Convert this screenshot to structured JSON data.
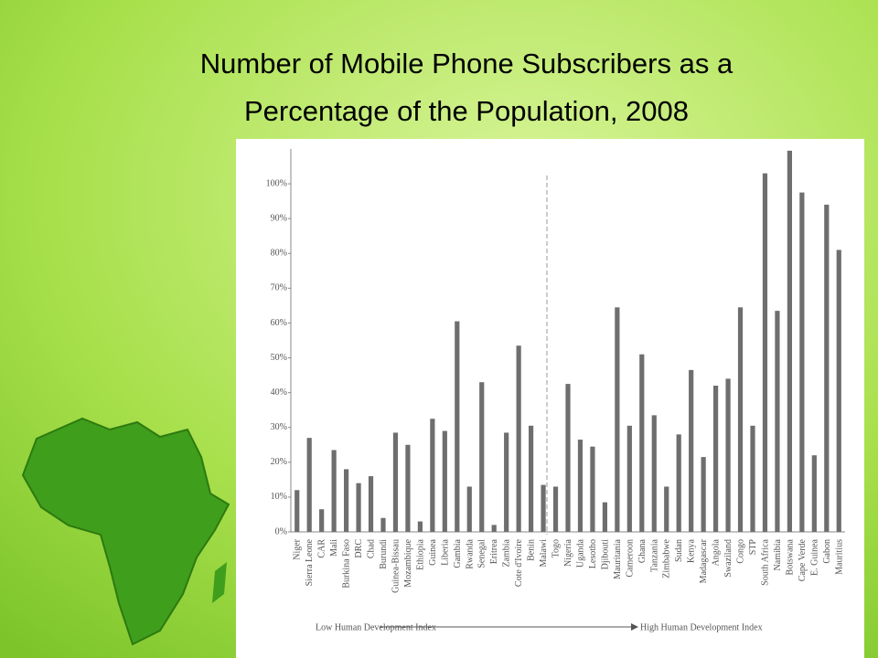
{
  "chart_data": {
    "type": "bar",
    "title": "Number of Mobile Phone Subscribers as a Percentage of the Population, 2008",
    "categories": [
      "Niger",
      "Sierra Leone",
      "CAR",
      "Mali",
      "Burkina Faso",
      "DRC",
      "Chad",
      "Burundi",
      "Guinea-Bissau",
      "Mozambique",
      "Ethiopia",
      "Guinea",
      "Liberia",
      "Gambia",
      "Rwanda",
      "Senegal",
      "Eritrea",
      "Zambia",
      "Cote d'Ivoire",
      "Benin",
      "Malawi",
      "Togo",
      "Nigeria",
      "Uganda",
      "Lesotho",
      "Djibouti",
      "Mauritania",
      "Cameroon",
      "Ghana",
      "Tanzania",
      "Zimbabwe",
      "Sudan",
      "Kenya",
      "Madagascar",
      "Angola",
      "Swaziland",
      "Congo",
      "STP",
      "South Africa",
      "Namibia",
      "Botswana",
      "Cape Verde",
      "E. Guinea",
      "Gabon",
      "Mauritius"
    ],
    "values": [
      12,
      27,
      6.5,
      23.5,
      18,
      14,
      16,
      4,
      28.5,
      25,
      3,
      32.5,
      29,
      60.5,
      13,
      43,
      2,
      28.5,
      53.5,
      30.5,
      13.5,
      13,
      42.5,
      26.5,
      24.5,
      8.5,
      64.5,
      30.5,
      51,
      33.5,
      13,
      28,
      46.5,
      21.5,
      42,
      44,
      64.5,
      30.5,
      103,
      63.5,
      109.5,
      97.5,
      22,
      94,
      81
    ],
    "color": "#6e6e6e",
    "ylim": [
      0,
      110
    ],
    "yticks": [
      {
        "value": 0,
        "label": "0%"
      },
      {
        "value": 10,
        "label": "10%"
      },
      {
        "value": 20,
        "label": "20%"
      },
      {
        "value": 30,
        "label": "30%"
      },
      {
        "value": 40,
        "label": "40%"
      },
      {
        "value": 50,
        "label": "50%"
      },
      {
        "value": 60,
        "label": "60%"
      },
      {
        "value": 70,
        "label": "70%"
      },
      {
        "value": 80,
        "label": "80%"
      },
      {
        "value": 90,
        "label": "90%"
      },
      {
        "value": 100,
        "label": "100%"
      }
    ],
    "xlabel_left": "Low Human Development Index",
    "xlabel_right": "High Human Development Index"
  }
}
